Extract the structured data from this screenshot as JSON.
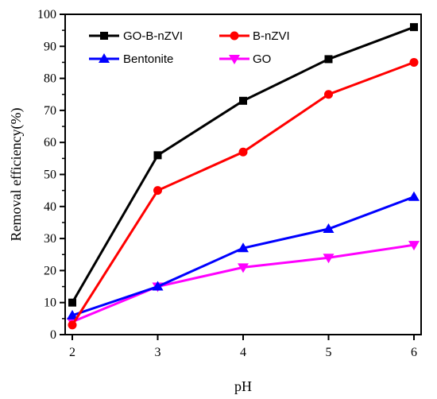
{
  "chart_data": {
    "type": "line",
    "title": "",
    "xlabel": "pH",
    "ylabel": "Removal efficiency(%)",
    "x": [
      2,
      3,
      4,
      5,
      6
    ],
    "xlim": [
      2,
      6
    ],
    "ylim": [
      0,
      100
    ],
    "xticks": [
      "2",
      "3",
      "4",
      "5",
      "6"
    ],
    "yticks": [
      "0",
      "10",
      "20",
      "30",
      "40",
      "50",
      "60",
      "70",
      "80",
      "90",
      "100"
    ],
    "grid": false,
    "legend_position": "top-left",
    "series": [
      {
        "name": "GO-B-nZVI",
        "values": [
          10,
          56,
          73,
          86,
          96
        ],
        "color": "#000000",
        "marker": "square"
      },
      {
        "name": "B-nZVI",
        "values": [
          3,
          45,
          57,
          75,
          85
        ],
        "color": "#ff0000",
        "marker": "circle"
      },
      {
        "name": "Bentonite",
        "values": [
          6,
          15,
          27,
          33,
          43
        ],
        "color": "#0000ff",
        "marker": "triangle-up"
      },
      {
        "name": "GO",
        "values": [
          4,
          15,
          21,
          24,
          28
        ],
        "color": "#ff00ff",
        "marker": "triangle-down"
      }
    ]
  }
}
